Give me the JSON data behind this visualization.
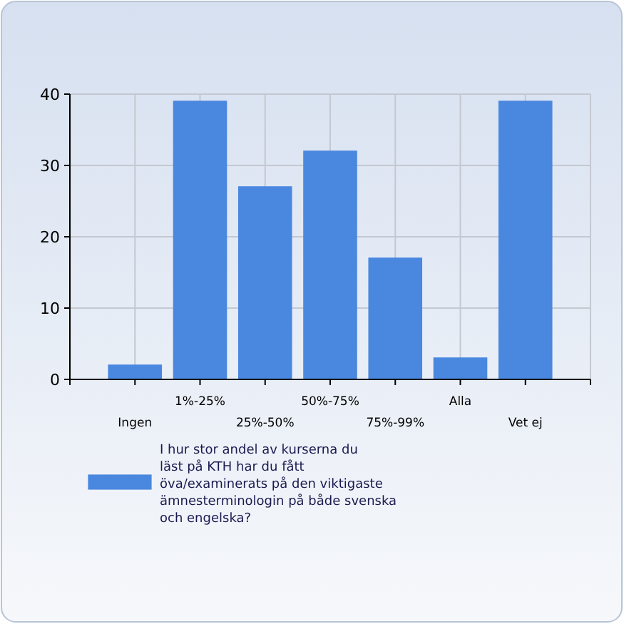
{
  "chart_data": {
    "type": "bar",
    "categories": [
      "Ingen",
      "1%-25%",
      "25%-50%",
      "50%-75%",
      "75%-99%",
      "Alla",
      "Vet ej"
    ],
    "series": [
      {
        "name": "I hur stor andel av kurserna du läst på KTH har du fått öva/examinerats på den viktigaste ämnesterminologin på både svenska och engelska?",
        "color": "#4a88e0",
        "values": [
          2,
          39,
          27,
          32,
          17,
          3,
          39
        ]
      }
    ],
    "ylim": [
      0,
      40
    ],
    "yticks": [
      0,
      10,
      20,
      30,
      40
    ],
    "grid": true,
    "legend": "bottom"
  }
}
